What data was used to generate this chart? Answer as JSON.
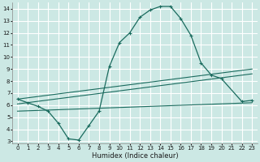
{
  "xlabel": "Humidex (Indice chaleur)",
  "bg_color": "#cce8e4",
  "grid_color": "#ffffff",
  "line_color": "#1a6b5e",
  "xlim": [
    -0.5,
    23.5
  ],
  "ylim": [
    2.8,
    14.5
  ],
  "xticks": [
    0,
    1,
    2,
    3,
    4,
    5,
    6,
    7,
    8,
    9,
    10,
    11,
    12,
    13,
    14,
    15,
    16,
    17,
    18,
    19,
    20,
    21,
    22,
    23
  ],
  "yticks": [
    3,
    4,
    5,
    6,
    7,
    8,
    9,
    10,
    11,
    12,
    13,
    14
  ],
  "series": [
    {
      "x": [
        0,
        1,
        2,
        3,
        4,
        5,
        6,
        7,
        8,
        9,
        10,
        11,
        12,
        13,
        14,
        15,
        16,
        17,
        18,
        19,
        20,
        22,
        23
      ],
      "y": [
        6.5,
        6.2,
        5.9,
        5.5,
        4.5,
        3.2,
        3.1,
        4.3,
        5.5,
        9.2,
        11.2,
        12.0,
        13.3,
        13.9,
        14.2,
        14.2,
        13.2,
        11.8,
        9.5,
        8.5,
        8.2,
        6.3,
        6.4
      ],
      "marker": true
    },
    {
      "x": [
        0,
        23
      ],
      "y": [
        6.5,
        9.0
      ],
      "marker": false
    },
    {
      "x": [
        0,
        23
      ],
      "y": [
        6.1,
        8.6
      ],
      "marker": false
    },
    {
      "x": [
        0,
        23
      ],
      "y": [
        5.5,
        6.2
      ],
      "marker": false
    }
  ]
}
